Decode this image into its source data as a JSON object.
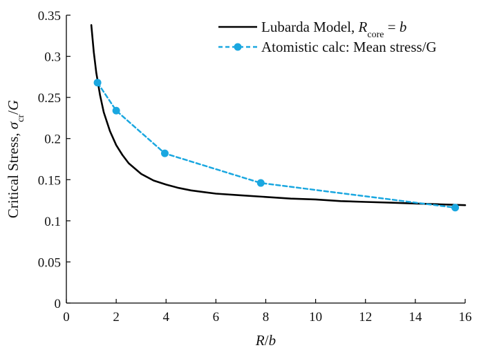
{
  "chart_data": {
    "type": "line",
    "title": "",
    "xlabel_parts": [
      {
        "text": "R",
        "italic": true
      },
      {
        "text": "/",
        "italic": false
      },
      {
        "text": "b",
        "italic": true
      }
    ],
    "ylabel_parts": [
      {
        "text": "Critical Stress, ",
        "italic": false
      },
      {
        "text": "σ",
        "italic": true
      },
      {
        "text": "cr",
        "italic": false,
        "sub": true
      },
      {
        "text": "/",
        "italic": false
      },
      {
        "text": "G",
        "italic": true
      }
    ],
    "xlim": [
      0,
      16
    ],
    "ylim": [
      0,
      0.35
    ],
    "xticks": [
      0,
      2,
      4,
      6,
      8,
      10,
      12,
      14,
      16
    ],
    "xtick_labels": [
      "0",
      "2",
      "4",
      "6",
      "8",
      "10",
      "12",
      "14",
      "16"
    ],
    "yticks": [
      0,
      0.05,
      0.1,
      0.15,
      0.2,
      0.25,
      0.3,
      0.35
    ],
    "ytick_labels": [
      "0",
      "0.05",
      "0.1",
      "0.15",
      "0.2",
      "0.25",
      "0.3",
      "0.35"
    ],
    "grid": false,
    "legend_position": "top-right",
    "series": [
      {
        "name_parts": [
          {
            "text": "Lubarda Model, ",
            "italic": false
          },
          {
            "text": "R",
            "italic": true
          },
          {
            "text": "core",
            "italic": false,
            "sub": true
          },
          {
            "text": " = ",
            "italic": false
          },
          {
            "text": "b",
            "italic": true
          }
        ],
        "style": "solid",
        "color": "#000000",
        "markers": false,
        "x": [
          1.0,
          1.1,
          1.2,
          1.35,
          1.5,
          1.75,
          2.0,
          2.25,
          2.5,
          3.0,
          3.5,
          4.0,
          4.5,
          5.0,
          5.5,
          6.0,
          7.0,
          8.0,
          9.0,
          10.0,
          11.0,
          12.0,
          13.0,
          14.0,
          15.0,
          16.0
        ],
        "y": [
          0.338,
          0.305,
          0.28,
          0.253,
          0.232,
          0.209,
          0.192,
          0.18,
          0.17,
          0.157,
          0.149,
          0.144,
          0.14,
          0.137,
          0.135,
          0.133,
          0.131,
          0.129,
          0.127,
          0.126,
          0.124,
          0.123,
          0.122,
          0.121,
          0.12,
          0.119
        ]
      },
      {
        "name": "Atomistic calc: Mean stress/G",
        "style": "dashed",
        "color": "#1aa7e0",
        "markers": true,
        "x": [
          1.25,
          2.0,
          3.95,
          7.8,
          15.6
        ],
        "y": [
          0.268,
          0.234,
          0.182,
          0.146,
          0.116
        ]
      }
    ]
  }
}
